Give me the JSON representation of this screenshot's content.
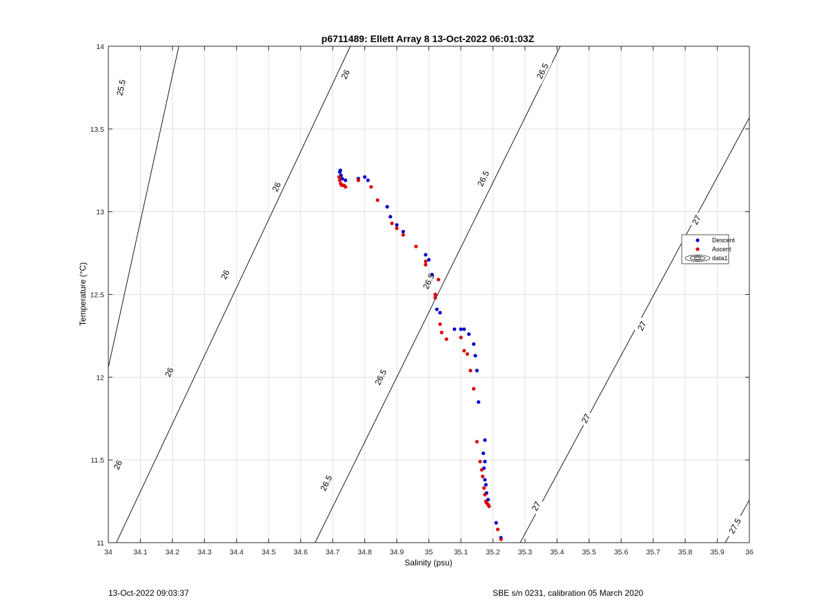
{
  "chart_data": {
    "type": "scatter",
    "title": "p6711489: Ellett Array 8 13-Oct-2022 06:01:03Z",
    "xlabel": "Salinity (psu)",
    "ylabel": "Temperature (°C)",
    "xlim": [
      34,
      36
    ],
    "ylim": [
      11,
      14
    ],
    "x_ticks": [
      "34",
      "34.1",
      "34.2",
      "34.3",
      "34.4",
      "34.5",
      "34.6",
      "34.7",
      "34.8",
      "34.9",
      "35",
      "35.1",
      "35.2",
      "35.3",
      "35.4",
      "35.5",
      "35.6",
      "35.7",
      "35.8",
      "35.9",
      "36"
    ],
    "y_ticks": [
      "11",
      "11.5",
      "12",
      "12.5",
      "13",
      "13.5",
      "14"
    ],
    "grid": true,
    "legend_position": "right",
    "legend": [
      "Descent",
      "Ascent",
      "data1"
    ],
    "colors": {
      "descent": "#0000cc",
      "ascent": "#dd0000",
      "contour": "#000000",
      "grid": "#e0e0e0"
    },
    "series": [
      {
        "name": "Descent",
        "x": [
          34.724,
          34.722,
          34.726,
          34.73,
          34.74,
          34.78,
          34.8,
          34.81,
          34.87,
          34.88,
          34.9,
          34.92,
          34.99,
          35,
          35.01,
          35.025,
          35.035,
          35.08,
          35.1,
          35.11,
          35.125,
          35.14,
          35.145,
          35.15,
          35.155,
          35.175,
          35.17,
          35.175,
          35.172,
          35.175,
          35.178,
          35.18,
          35.185,
          35.21,
          35.225
        ],
        "y": [
          13.25,
          13.24,
          13.22,
          13.2,
          13.19,
          13.2,
          13.21,
          13.19,
          13.03,
          12.97,
          12.92,
          12.88,
          12.74,
          12.71,
          12.62,
          12.41,
          12.39,
          12.29,
          12.29,
          12.29,
          12.26,
          12.2,
          12.13,
          12.04,
          11.85,
          11.62,
          11.54,
          11.49,
          11.45,
          11.38,
          11.35,
          11.3,
          11.26,
          11.12,
          11.03
        ]
      },
      {
        "name": "Ascent",
        "x": [
          34.72,
          34.722,
          34.725,
          34.728,
          34.735,
          34.74,
          34.78,
          34.82,
          34.84,
          34.885,
          34.9,
          34.92,
          34.96,
          34.99,
          34.99,
          35.03,
          35.02,
          35.02,
          35.035,
          35.04,
          35.055,
          35.1,
          35.11,
          35.12,
          35.13,
          35.14,
          35.15,
          35.16,
          35.165,
          35.168,
          35.172,
          35.175,
          35.178,
          35.18,
          35.185,
          35.188,
          35.215,
          35.225
        ],
        "y": [
          13.21,
          13.19,
          13.17,
          13.16,
          13.16,
          13.15,
          13.19,
          13.15,
          13.07,
          12.93,
          12.9,
          12.86,
          12.79,
          12.7,
          12.68,
          12.59,
          12.5,
          12.48,
          12.32,
          12.27,
          12.23,
          12.24,
          12.16,
          12.14,
          12.04,
          11.93,
          11.61,
          11.49,
          11.44,
          11.4,
          11.33,
          11.29,
          11.25,
          11.24,
          11.23,
          11.22,
          11.08,
          11.02
        ]
      }
    ],
    "isopycnals": [
      {
        "label": "25.5",
        "S_at_T11": 33.88,
        "S_at_T14": 34.22,
        "label_at": [
          34.04,
          13.75
        ]
      },
      {
        "label": "26",
        "S_at_T11": 34.025,
        "S_at_T14": 34.755,
        "label_at": [
          34.74,
          13.83
        ]
      },
      {
        "label": "26",
        "S_at_T11": 34.025,
        "S_at_T14": 34.755,
        "label_at": [
          34.525,
          13.15
        ]
      },
      {
        "label": "26",
        "S_at_T11": 34.025,
        "S_at_T14": 34.755,
        "label_at": [
          34.365,
          12.62
        ]
      },
      {
        "label": "26",
        "S_at_T11": 34.025,
        "S_at_T14": 34.755,
        "label_at": [
          34.19,
          12.03
        ]
      },
      {
        "label": "26",
        "S_at_T11": 34.025,
        "S_at_T14": 34.755,
        "label_at": [
          34.03,
          11.47
        ]
      },
      {
        "label": "26.5",
        "S_at_T11": 34.645,
        "S_at_T14": 35.41,
        "label_at": [
          35.355,
          13.85
        ]
      },
      {
        "label": "26.5",
        "S_at_T11": 34.645,
        "S_at_T14": 35.41,
        "label_at": [
          35.17,
          13.2
        ]
      },
      {
        "label": "26.5",
        "S_at_T11": 34.645,
        "S_at_T14": 35.41,
        "label_at": [
          35.0,
          12.58
        ]
      },
      {
        "label": "26.5",
        "S_at_T11": 34.645,
        "S_at_T14": 35.41,
        "label_at": [
          34.85,
          12.0
        ]
      },
      {
        "label": "26.5",
        "S_at_T11": 34.645,
        "S_at_T14": 35.41,
        "label_at": [
          34.68,
          11.36
        ]
      },
      {
        "label": "27",
        "S_at_T11": 35.285,
        "S_at_T14": 36.12,
        "label_at": [
          35.835,
          12.95
        ]
      },
      {
        "label": "27",
        "S_at_T11": 35.285,
        "S_at_T14": 36.12,
        "label_at": [
          35.665,
          12.31
        ]
      },
      {
        "label": "27",
        "S_at_T11": 35.285,
        "S_at_T14": 36.12,
        "label_at": [
          35.49,
          11.75
        ]
      },
      {
        "label": "27",
        "S_at_T11": 35.285,
        "S_at_T14": 36.12,
        "label_at": [
          35.335,
          11.22
        ]
      },
      {
        "label": "27.5",
        "S_at_T11": 35.925,
        "S_at_T14": 36.8,
        "label_at": [
          35.955,
          11.1
        ]
      }
    ]
  },
  "footer": {
    "timestamp": "13-Oct-2022 09:03:37",
    "instrument": "SBE s/n 0231, calibration 05 March 2020"
  }
}
